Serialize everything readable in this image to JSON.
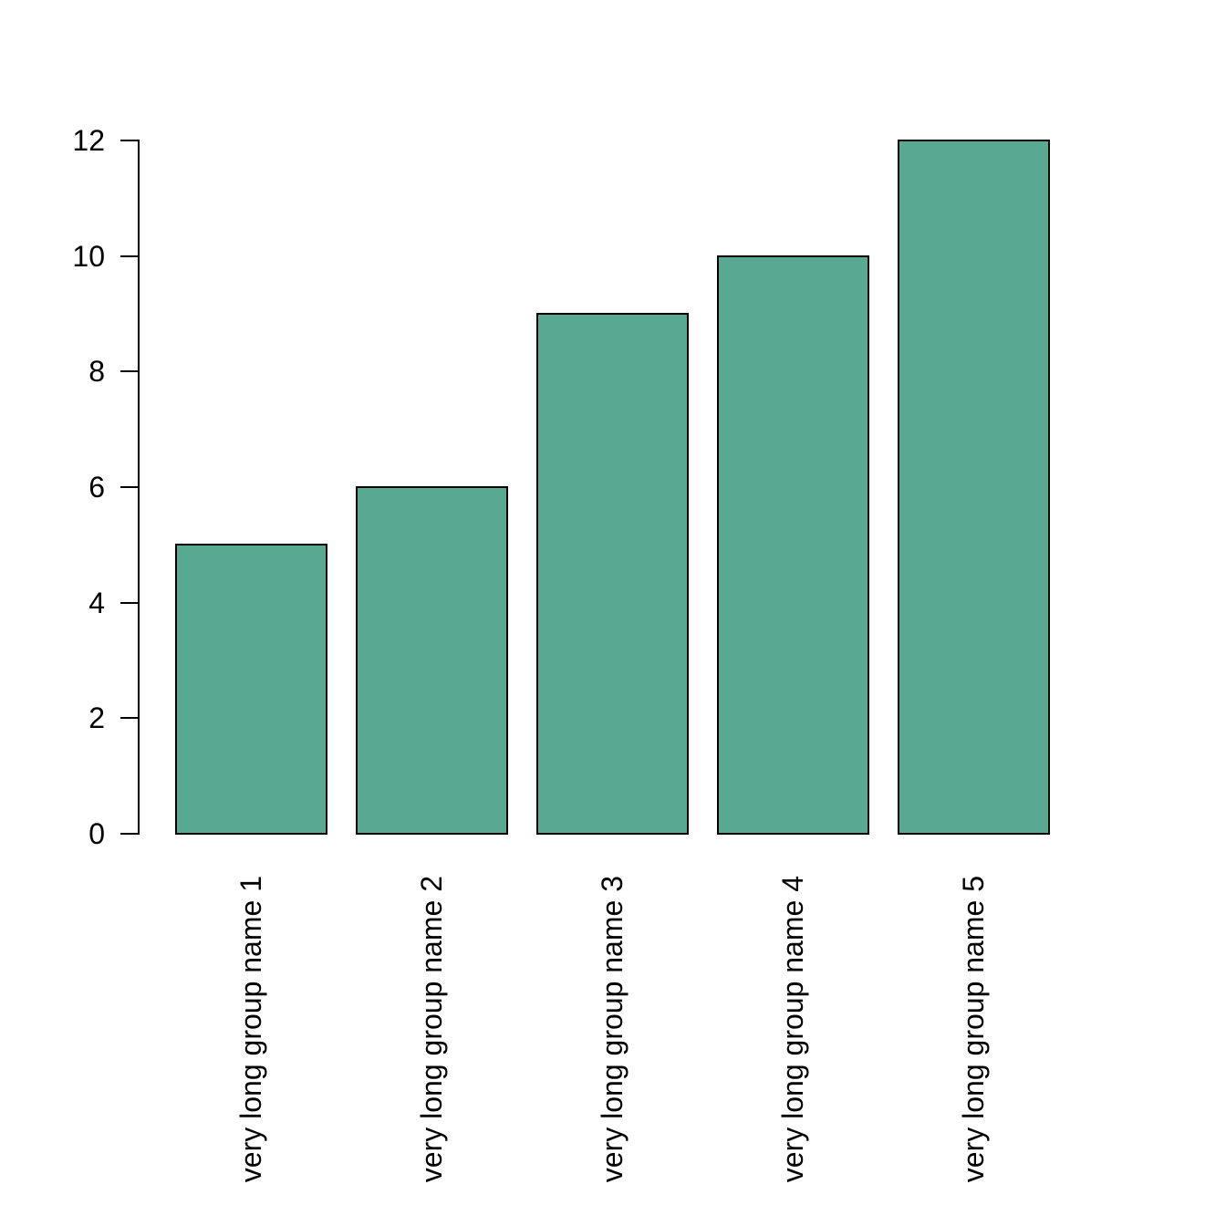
{
  "chart_data": {
    "type": "bar",
    "categories": [
      "very long group name 1",
      "very long group name 2",
      "very long group name 3",
      "very long group name 4",
      "very long group name 5"
    ],
    "values": [
      5,
      6,
      9,
      10,
      12
    ],
    "title": "",
    "xlabel": "",
    "ylabel": "",
    "ylim": [
      0,
      12
    ],
    "yticks": [
      0,
      2,
      4,
      6,
      8,
      10,
      12
    ],
    "grid": "off",
    "legend": "none",
    "colors": {
      "bar_fill": "#58a892",
      "bar_border": "#000000",
      "axis": "#000000",
      "text": "#000000",
      "background": "#ffffff"
    }
  }
}
